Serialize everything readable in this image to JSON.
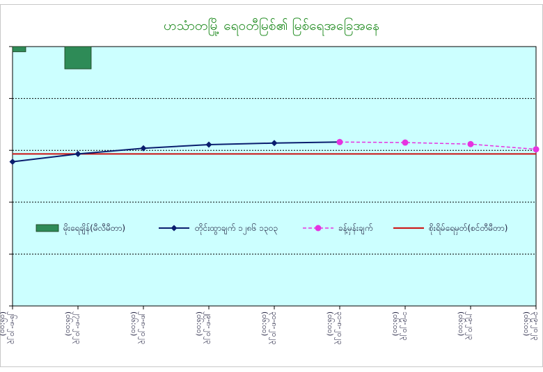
{
  "chart_data": {
    "type": "bar+line",
    "title": "ဟသံာတမြို့ ရေ၀တီမြစ်၏ မြစ်ရေအခြေအနေ",
    "categories": [
      [
        "၂၆-၈-၂၀၂၃",
        "(၀၆:၀၀)"
      ],
      [
        "၂၇-၈-၂၀၂၃",
        "(၀၆:၀၀)"
      ],
      [
        "၂၈-၈-၂၀၂၃",
        "(၀၆:၀၀)"
      ],
      [
        "၂၉-၈-၂၀၂၃",
        "(၀၆:၀၀)"
      ],
      [
        "၃၀-၈-၂၀၂၃",
        "(၀၆:၀၀)"
      ],
      [
        "၃၁-၈-၂၀၂၃",
        "(၀၆:၀၀)"
      ],
      [
        "၁-၉-၂၀၂၃",
        "(၀၆:၀၀)"
      ],
      [
        "၂-၉-၂၀၂၃",
        "(၀၆:၀၀)"
      ],
      [
        "၃-၉-၂၀၂၃",
        "(၀၆:၀၀)"
      ]
    ],
    "ylim": [
      0,
      5
    ],
    "y_ticks": [
      0,
      1,
      2,
      3,
      4,
      5
    ],
    "grid": true,
    "legend_position": "center",
    "series": [
      {
        "name": "မိုးရေချိန်(မီလီမီတာ)",
        "kind": "bar",
        "color": "#2e8b57",
        "values": [
          0.1,
          0.43,
          null,
          null,
          null,
          null,
          null,
          null,
          null
        ]
      },
      {
        "name": "တိုင်းထွာချက် ၁၂၈၆ ၁၃၀၃",
        "kind": "line",
        "color": "#0a1e6e",
        "values": [
          2.78,
          2.93,
          3.04,
          3.11,
          3.14,
          3.16,
          null,
          null,
          null
        ]
      },
      {
        "name": "ခန့်မှန်းချက်",
        "kind": "dashed-line",
        "color": "#e633e0",
        "values": [
          null,
          null,
          null,
          null,
          null,
          3.16,
          3.15,
          3.12,
          3.02
        ]
      },
      {
        "name": "စိုးရိမ်ရေမှတ်(စင်တီမီတာ)",
        "kind": "hline",
        "color": "#cc1111",
        "value": 2.93
      }
    ]
  }
}
